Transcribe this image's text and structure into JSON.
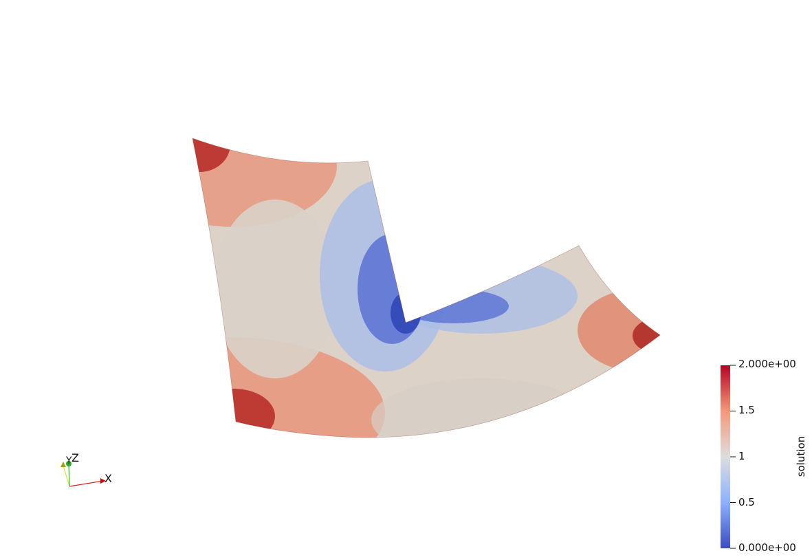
{
  "scalar_field": {
    "name": "solution",
    "range": [
      0,
      2
    ],
    "colormap": [
      "#3b4cc0",
      "#dddddd",
      "#b40426"
    ]
  },
  "color_bar": {
    "title": "solution",
    "tick_labels": [
      "2.000e+00",
      "1.5",
      "1",
      "0.5",
      "0.000e+00"
    ],
    "tick_values": [
      2,
      1.5,
      1,
      0.5,
      0
    ]
  },
  "orientation_axes": {
    "labels": {
      "x": "X",
      "y": "Y",
      "z": "Z"
    },
    "colors": {
      "x": "#e02020",
      "y": "#e0e020",
      "z": "#20c020"
    }
  }
}
